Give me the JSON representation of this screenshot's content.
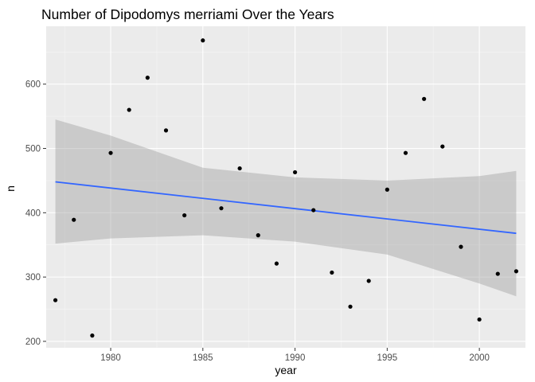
{
  "chart_data": {
    "type": "scatter",
    "title": "Number of Dipodomys merriami Over the Years",
    "xlabel": "year",
    "ylabel": "n",
    "xlim": [
      1976.5,
      2002.5
    ],
    "ylim": [
      190,
      690
    ],
    "x_ticks": [
      1980,
      1985,
      1990,
      1995,
      2000
    ],
    "y_ticks": [
      200,
      300,
      400,
      500,
      600
    ],
    "grid": true,
    "legend": "none",
    "series": [
      {
        "x": [
          1977,
          1978,
          1979,
          1980,
          1981,
          1982,
          1983,
          1984,
          1985,
          1986,
          1987,
          1988,
          1989,
          1990,
          1991,
          1992,
          1993,
          1994,
          1995,
          1996,
          1997,
          1998,
          1999,
          2000,
          2001,
          2002
        ],
        "y": [
          264,
          389,
          209,
          493,
          560,
          610,
          528,
          396,
          668,
          407,
          469,
          365,
          321,
          463,
          404,
          307,
          254,
          294,
          436,
          493,
          577,
          503,
          347,
          234,
          305,
          309
        ]
      }
    ],
    "trend_line": {
      "method": "linear",
      "x": [
        1977,
        2002
      ],
      "y": [
        448,
        368
      ],
      "ci_lower": [
        [
          1977,
          352
        ],
        [
          1980,
          360
        ],
        [
          1985,
          365
        ],
        [
          1990,
          355
        ],
        [
          1995,
          335
        ],
        [
          2000,
          290
        ],
        [
          2002,
          270
        ]
      ],
      "ci_upper": [
        [
          1977,
          545
        ],
        [
          1980,
          520
        ],
        [
          1985,
          470
        ],
        [
          1990,
          455
        ],
        [
          1995,
          450
        ],
        [
          2000,
          457
        ],
        [
          2002,
          465
        ]
      ]
    },
    "colors": {
      "panel": "#ebebeb",
      "grid_major": "#ffffff",
      "grid_minor": "#f5f5f5",
      "points": "#000000",
      "line": "#3366ff",
      "ribbon": "#999999",
      "tick_text": "#4d4d4d",
      "tick_mark": "#333333"
    }
  }
}
